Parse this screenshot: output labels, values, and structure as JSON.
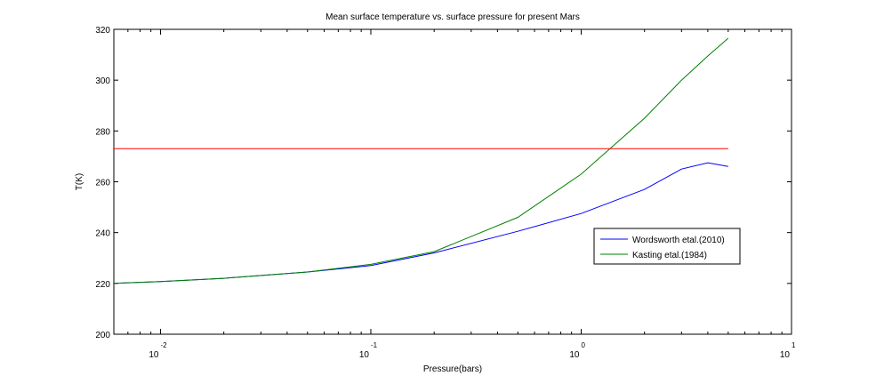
{
  "chart_data": {
    "type": "line",
    "title": "Mean surface temperature vs. surface pressure for present Mars",
    "xlabel": "Pressure(bars)",
    "ylabel": "T(K)",
    "xscale": "log",
    "xlim": [
      0.006,
      10
    ],
    "ylim": [
      200,
      320
    ],
    "x_ticks": [
      {
        "base": "10",
        "exp": "-2",
        "value": 0.01
      },
      {
        "base": "10",
        "exp": "-1",
        "value": 0.1
      },
      {
        "base": "10",
        "exp": "0",
        "value": 1
      },
      {
        "base": "10",
        "exp": "1",
        "value": 10
      }
    ],
    "y_ticks": [
      200,
      220,
      240,
      260,
      280,
      300,
      320
    ],
    "grid": false,
    "legend_position": "right",
    "series": [
      {
        "name": "Wordsworth etal.(2010)",
        "color": "#0000ff",
        "x": [
          0.006,
          0.01,
          0.02,
          0.05,
          0.1,
          0.2,
          0.5,
          1,
          2,
          3,
          4,
          5
        ],
        "y": [
          220,
          220.7,
          222,
          224.5,
          227,
          232,
          240.5,
          247.5,
          257,
          265,
          267.5,
          266
        ]
      },
      {
        "name": "Kasting etal.(1984)",
        "color": "#008000",
        "x": [
          0.006,
          0.01,
          0.02,
          0.05,
          0.1,
          0.2,
          0.5,
          1,
          2,
          3,
          4,
          5
        ],
        "y": [
          220,
          220.7,
          222,
          224.5,
          227.5,
          232.5,
          246,
          263,
          285,
          300,
          309.5,
          316.5
        ]
      },
      {
        "name": "",
        "color": "#ff0000",
        "x": [
          0.006,
          5
        ],
        "y": [
          273,
          273
        ]
      }
    ]
  }
}
